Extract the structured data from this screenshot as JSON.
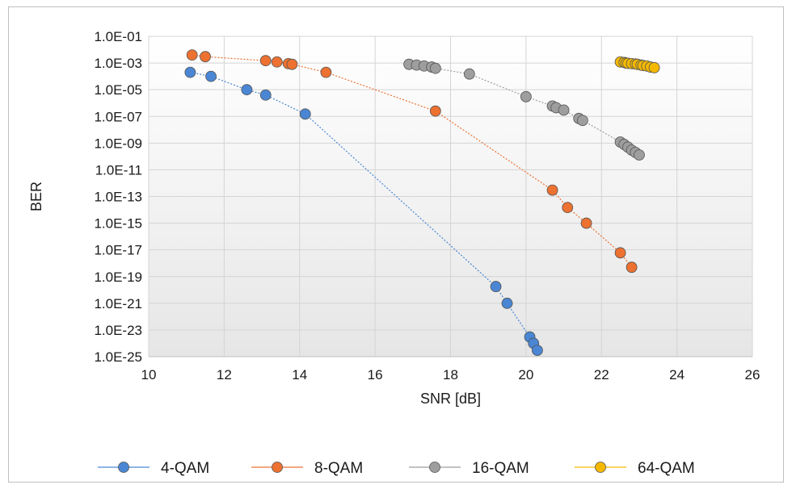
{
  "chart_data": {
    "type": "scatter",
    "title": "",
    "xlabel": "SNR [dB]",
    "ylabel": "BER",
    "xlim": [
      10,
      26
    ],
    "ylim": [
      1e-25,
      0.1
    ],
    "y_scale": "log",
    "grid": true,
    "legend_position": "bottom",
    "x_ticks": [
      "10",
      "12",
      "14",
      "16",
      "18",
      "20",
      "22",
      "24",
      "26"
    ],
    "y_ticks": [
      "1.0E-01",
      "1.0E-03",
      "1.0E-05",
      "1.0E-07",
      "1.0E-09",
      "1.0E-11",
      "1.0E-13",
      "1.0E-15",
      "1.0E-17",
      "1.0E-19",
      "1.0E-21",
      "1.0E-23",
      "1.0E-25"
    ],
    "series": [
      {
        "name": "4-QAM",
        "color": "#4a86d4",
        "x": [
          11.1,
          11.65,
          12.6,
          13.1,
          14.15,
          19.2,
          19.5,
          20.1,
          20.2,
          20.3
        ],
        "y": [
          0.0002,
          0.0001,
          1e-05,
          4e-06,
          1.5e-07,
          1.8e-20,
          1e-21,
          3e-24,
          1e-24,
          3e-25
        ]
      },
      {
        "name": "8-QAM",
        "color": "#ed7131",
        "x": [
          11.15,
          11.5,
          13.1,
          13.4,
          13.7,
          13.8,
          14.7,
          17.6,
          20.7,
          21.1,
          21.6,
          22.5,
          22.8
        ],
        "y": [
          0.004,
          0.003,
          0.0015,
          0.0012,
          0.0009,
          0.0008,
          0.0002,
          2.5e-07,
          3e-13,
          1.5e-14,
          1e-15,
          6e-18,
          5e-19
        ]
      },
      {
        "name": "16-QAM",
        "color": "#9e9e9e",
        "x": [
          16.9,
          17.1,
          17.3,
          17.5,
          17.6,
          18.5,
          20,
          20.7,
          20.8,
          21,
          21.4,
          21.5,
          22.5,
          22.6,
          22.7,
          22.8,
          22.9,
          23
        ],
        "y": [
          0.0008,
          0.0007,
          0.0006,
          0.0005,
          0.0004,
          0.00015,
          3e-06,
          6e-07,
          4.5e-07,
          3e-07,
          7e-08,
          5e-08,
          1.2e-09,
          8e-10,
          5e-10,
          3e-10,
          2e-10,
          1.3e-10
        ]
      },
      {
        "name": "64-QAM",
        "color": "#f5b800",
        "x": [
          22.5,
          22.6,
          22.65,
          22.7,
          22.8,
          22.9,
          22.95,
          23.05,
          23.1,
          23.2,
          23.3,
          23.4
        ],
        "y": [
          0.0012,
          0.0011,
          0.001,
          0.00095,
          0.0009,
          0.00085,
          0.0008,
          0.0007,
          0.00065,
          0.0006,
          0.0005,
          0.00045
        ]
      }
    ]
  }
}
